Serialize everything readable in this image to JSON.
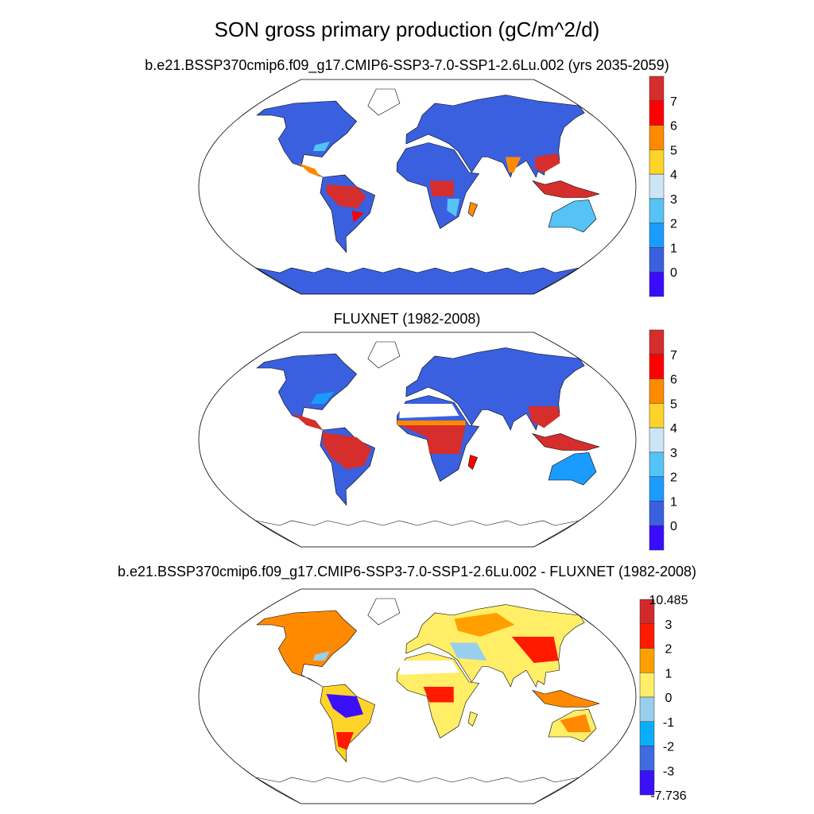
{
  "title": "SON gross primary production (gC/m^2/d)",
  "panels": [
    {
      "subtitle": "b.e21.BSSP370cmip6.f09_g17.CMIP6-SSP3-7.0-SSP1-2.6Lu.002 (yrs 2035-2059)",
      "colorbar": {
        "labels": [
          "7",
          "6",
          "5",
          "4",
          "3",
          "2",
          "1",
          "0"
        ],
        "colors": [
          "#d62d2d",
          "#ff0000",
          "#ff8a00",
          "#ffd42a",
          "#cce6f6",
          "#55c3f5",
          "#1a9cff",
          "#3a60e0",
          "#3a0cff"
        ]
      }
    },
    {
      "subtitle": "FLUXNET (1982-2008)",
      "colorbar": {
        "labels": [
          "7",
          "6",
          "5",
          "4",
          "3",
          "2",
          "1",
          "0"
        ],
        "colors": [
          "#d62d2d",
          "#ff0000",
          "#ff8a00",
          "#ffd42a",
          "#cce6f6",
          "#55c3f5",
          "#1a9cff",
          "#3a60e0",
          "#3a0cff"
        ]
      }
    },
    {
      "subtitle": "b.e21.BSSP370cmip6.f09_g17.CMIP6-SSP3-7.0-SSP1-2.6Lu.002 - FLUXNET (1982-2008)",
      "colorbar": {
        "labels": [
          "10.485",
          "3",
          "2",
          "1",
          "0",
          "-1",
          "-2",
          "-3",
          "-7.736"
        ],
        "colors": [
          "#d22a2a",
          "#ff1a00",
          "#ffa000",
          "#ffee66",
          "#99cfee",
          "#0aaef8",
          "#3e6ce0",
          "#3a10f8"
        ]
      }
    }
  ]
}
